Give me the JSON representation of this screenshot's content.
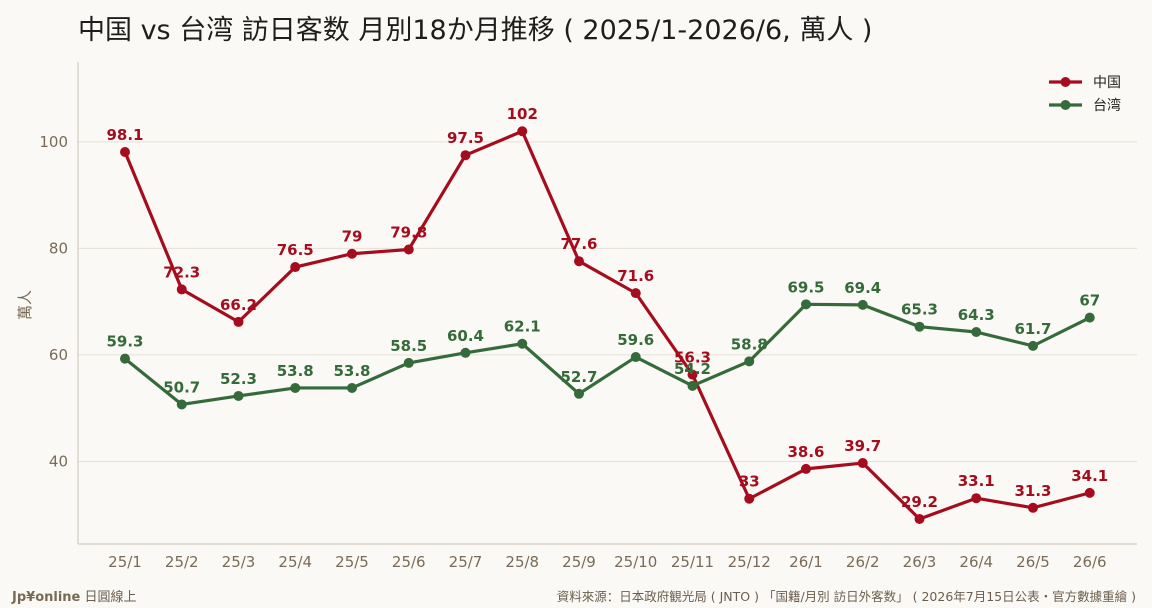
{
  "chart_data": {
    "type": "line",
    "title": "中国 vs 台湾 訪日客数 月別18か月推移 ( 2025/1-2026/6, 萬人 )",
    "xlabel": "",
    "ylabel": "萬人",
    "categories": [
      "25/1",
      "25/2",
      "25/3",
      "25/4",
      "25/5",
      "25/6",
      "25/7",
      "25/8",
      "25/9",
      "25/10",
      "25/11",
      "25/12",
      "26/1",
      "26/2",
      "26/3",
      "26/4",
      "26/5",
      "26/6"
    ],
    "yticks": [
      40,
      60,
      80,
      100
    ],
    "ylim": [
      24.5,
      115
    ],
    "grid": true,
    "legend_position": "top-right",
    "series": [
      {
        "name": "中国",
        "color": "#a50d1e",
        "values": [
          98.1,
          72.3,
          66.2,
          76.5,
          79,
          79.8,
          97.5,
          102,
          77.6,
          71.6,
          56.3,
          33,
          38.6,
          39.7,
          29.2,
          33.1,
          31.3,
          34.1
        ]
      },
      {
        "name": "台湾",
        "color": "#356b3a",
        "values": [
          59.3,
          50.7,
          52.3,
          53.8,
          53.8,
          58.5,
          60.4,
          62.1,
          52.7,
          59.6,
          54.2,
          58.8,
          69.5,
          69.4,
          65.3,
          64.3,
          61.7,
          67
        ]
      }
    ]
  },
  "footer": {
    "brand": "Jp¥online",
    "brand_sub": "日圓線上",
    "source": "資料來源：日本政府観光局 ( JNTO ) 「国籍/月別 訪日外客数」 ( 2026年7月15日公表・官方數據重繪 )"
  }
}
